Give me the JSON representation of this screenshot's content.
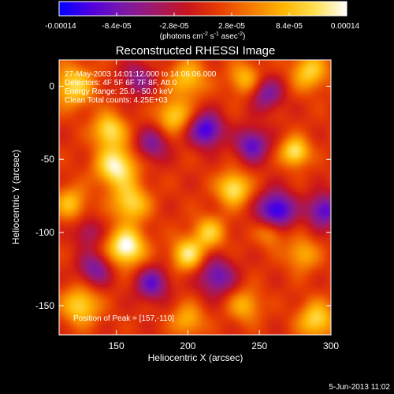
{
  "chart_data": {
    "type": "heatmap",
    "title": "Reconstructed RHESSI Image",
    "xlabel": "Heliocentric X (arcsec)",
    "ylabel": "Heliocentric Y (arcsec)",
    "xlim": [
      110,
      300
    ],
    "ylim": [
      -170,
      18
    ],
    "x_ticks": [
      150,
      200,
      250,
      300
    ],
    "y_ticks": [
      0,
      -50,
      -100,
      -150
    ],
    "colorbar": {
      "min": -0.00014,
      "max": 0.00014,
      "tick_labels": [
        "-0.00014",
        "-8.4e-05",
        "-2.8e-05",
        "2.8e-05",
        "8.4e-05",
        "0.00014"
      ],
      "tick_values": [
        -0.00014,
        -8.4e-05,
        -2.8e-05,
        2.8e-05,
        8.4e-05,
        0.00014
      ],
      "unit_prefix": "(photons cm",
      "unit_sup1": "-2",
      "unit_mid": " s",
      "unit_sup2": "-1",
      "unit_mid2": " asec",
      "unit_sup3": "-2",
      "unit_suffix": ")",
      "colors": [
        "#0000ff",
        "#5000e0",
        "#7a18a8",
        "#a01a6a",
        "#c8141e",
        "#e63c00",
        "#f57a00",
        "#ffb400",
        "#ffe050",
        "#ffffff"
      ]
    },
    "annotations": [
      "27-May-2003 14:01:12.000 to 14:06:06.000",
      "Detectors: 4F 5F 6F 7F 8F, Att 0",
      "Energy Range: 25.0 - 50.0 keV",
      "Clean    Total counts: 4.25E+03"
    ],
    "peak_label": "Position of Peak = [157,-110]",
    "peak": [
      157,
      -110
    ],
    "sources": [
      {
        "x": 157,
        "y": -110,
        "amp": 1.0,
        "w": 9
      },
      {
        "x": 150,
        "y": -55,
        "amp": 0.9,
        "w": 10
      },
      {
        "x": 145,
        "y": -30,
        "amp": 0.75,
        "w": 8
      },
      {
        "x": 160,
        "y": -80,
        "amp": 0.7,
        "w": 9
      },
      {
        "x": 125,
        "y": -150,
        "amp": 0.7,
        "w": 9
      },
      {
        "x": 120,
        "y": 0,
        "amp": 0.7,
        "w": 10
      },
      {
        "x": 118,
        "y": -80,
        "amp": 0.55,
        "w": 8
      },
      {
        "x": 200,
        "y": -115,
        "amp": 0.75,
        "w": 8
      },
      {
        "x": 215,
        "y": -100,
        "amp": 0.6,
        "w": 8
      },
      {
        "x": 190,
        "y": -20,
        "amp": 0.65,
        "w": 8
      },
      {
        "x": 200,
        "y": 5,
        "amp": 0.6,
        "w": 9
      },
      {
        "x": 240,
        "y": 5,
        "amp": 0.55,
        "w": 8
      },
      {
        "x": 232,
        "y": -70,
        "amp": 0.8,
        "w": 8
      },
      {
        "x": 275,
        "y": -45,
        "amp": 0.8,
        "w": 7
      },
      {
        "x": 285,
        "y": 10,
        "amp": 0.65,
        "w": 9
      },
      {
        "x": 280,
        "y": -115,
        "amp": 0.5,
        "w": 8
      },
      {
        "x": 290,
        "y": -160,
        "amp": 0.7,
        "w": 9
      },
      {
        "x": 240,
        "y": -150,
        "amp": 0.5,
        "w": 8
      },
      {
        "x": 200,
        "y": -160,
        "amp": 0.5,
        "w": 8
      },
      {
        "x": 258,
        "y": -100,
        "amp": 0.45,
        "w": 7
      },
      {
        "x": 213,
        "y": -30,
        "amp": -0.9,
        "w": 8
      },
      {
        "x": 262,
        "y": -85,
        "amp": -1.0,
        "w": 9
      },
      {
        "x": 295,
        "y": -85,
        "amp": -0.8,
        "w": 8
      },
      {
        "x": 245,
        "y": -40,
        "amp": -0.75,
        "w": 8
      },
      {
        "x": 220,
        "y": -130,
        "amp": -0.7,
        "w": 9
      },
      {
        "x": 175,
        "y": -135,
        "amp": -0.7,
        "w": 8
      },
      {
        "x": 135,
        "y": -125,
        "amp": -0.6,
        "w": 8
      },
      {
        "x": 175,
        "y": -40,
        "amp": -0.55,
        "w": 8
      },
      {
        "x": 255,
        "y": -5,
        "amp": -0.6,
        "w": 8
      },
      {
        "x": 165,
        "y": 5,
        "amp": -0.5,
        "w": 8
      },
      {
        "x": 130,
        "y": -100,
        "amp": -0.4,
        "w": 7
      }
    ]
  },
  "footer": {
    "date": "5-Jun-2013 11:02"
  }
}
